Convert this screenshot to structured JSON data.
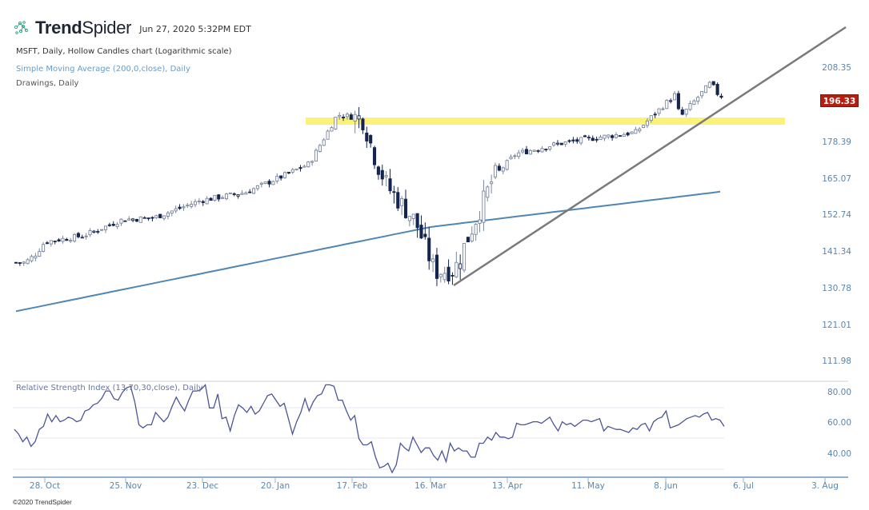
{
  "header": {
    "brand_bold": "Trend",
    "brand_light": "Spider",
    "timestamp": "Jun 27, 2020 5:32PM EDT",
    "logo_icon": "spider-web-dots-icon"
  },
  "legend": {
    "main": "MSFT, Daily, Hollow Candles chart (Logarithmic scale)",
    "sma": "Simple Moving Average (200,0,close), Daily",
    "drawings": "Drawings, Daily",
    "rsi": "Relative Strength Index (13,70,30,close), Daily"
  },
  "price_axis": {
    "labels": [
      "208.35",
      "178.39",
      "165.07",
      "152.74",
      "141.34",
      "130.78",
      "121.01",
      "111.98"
    ],
    "last_price": "196.33",
    "last_price_color": "#b32012"
  },
  "rsi_axis": {
    "labels": [
      "80.00",
      "60.00",
      "40.00"
    ]
  },
  "x_axis": {
    "labels": [
      "28. Oct",
      "25. Nov",
      "23. Dec",
      "20. Jan",
      "17. Feb",
      "16. Mar",
      "13. Apr",
      "11. May",
      "8. Jun",
      "6. Jul",
      "3. Aug"
    ]
  },
  "footer": {
    "copyright": "©2020 TrendSpider"
  },
  "colors": {
    "candle": "#14254f",
    "candle_hollow_fill": "#ffffff",
    "candle_hollow_grey": "#7a869e",
    "sma": "#4f86b4",
    "trendline": "#7a7a7a",
    "resistance_zone": "#fbf27a",
    "rsi_line": "#4c5596",
    "axis": "#8fb1cf"
  },
  "chart_data": [
    {
      "type": "candlestick",
      "title": "MSFT, Daily, Hollow Candles chart (Logarithmic scale)",
      "scale": "log",
      "ylim": [
        108,
        225
      ],
      "y_ticks": [
        208.35,
        178.39,
        165.07,
        152.74,
        141.34,
        130.78,
        121.01,
        111.98
      ],
      "x_ticks": [
        "28. Oct",
        "25. Nov",
        "23. Dec",
        "20. Jan",
        "17. Feb",
        "16. Mar",
        "13. Apr",
        "11. May",
        "8. Jun",
        "6. Jul",
        "3. Aug"
      ],
      "last_price": 196.33,
      "approx_close_path": [
        {
          "date": "2019-10-21",
          "close": 138.0
        },
        {
          "date": "2019-10-25",
          "close": 140.7
        },
        {
          "date": "2019-10-28",
          "close": 144.2
        },
        {
          "date": "2019-11-11",
          "close": 146.1
        },
        {
          "date": "2019-11-25",
          "close": 151.2
        },
        {
          "date": "2019-12-06",
          "close": 151.7
        },
        {
          "date": "2019-12-23",
          "close": 157.4
        },
        {
          "date": "2020-01-08",
          "close": 160.1
        },
        {
          "date": "2020-01-22",
          "close": 166.0
        },
        {
          "date": "2020-01-31",
          "close": 170.2
        },
        {
          "date": "2020-02-10",
          "close": 188.7
        },
        {
          "date": "2020-02-19",
          "close": 187.3
        },
        {
          "date": "2020-02-24",
          "close": 170.9
        },
        {
          "date": "2020-02-28",
          "close": 162.0
        },
        {
          "date": "2020-03-09",
          "close": 150.6
        },
        {
          "date": "2020-03-16",
          "close": 135.4
        },
        {
          "date": "2020-03-23",
          "close": 135.9
        },
        {
          "date": "2020-04-06",
          "close": 165.3
        },
        {
          "date": "2020-04-14",
          "close": 173.7
        },
        {
          "date": "2020-04-29",
          "close": 177.4
        },
        {
          "date": "2020-05-13",
          "close": 179.8
        },
        {
          "date": "2020-05-27",
          "close": 181.8
        },
        {
          "date": "2020-06-10",
          "close": 196.8
        },
        {
          "date": "2020-06-12",
          "close": 187.7
        },
        {
          "date": "2020-06-23",
          "close": 201.9
        },
        {
          "date": "2020-06-26",
          "close": 196.33
        }
      ],
      "overlays": [
        {
          "name": "Simple Moving Average (200,0,close), Daily",
          "type": "line",
          "start": 124.5,
          "mid_mar": 148.8,
          "end": 160.5
        },
        {
          "name": "Resistance zone",
          "type": "band",
          "from_date": "2020-01-28",
          "to_date": "2020-07-20",
          "low": 186.5,
          "high": 189.5
        },
        {
          "name": "Trendline",
          "type": "line",
          "from": {
            "date": "2020-03-23",
            "price": 132.5
          },
          "to": {
            "date": "2020-08-10",
            "price": 230
          }
        }
      ]
    },
    {
      "type": "line",
      "title": "Relative Strength Index (13,70,30,close), Daily",
      "ylim": [
        30,
        85
      ],
      "y_ticks": [
        80,
        60,
        40
      ],
      "gridlines": [
        70,
        50,
        30
      ],
      "series": [
        {
          "name": "RSI(13)",
          "values": [
            56,
            53,
            48,
            51,
            45,
            48,
            56,
            58,
            66,
            61,
            65,
            61,
            62,
            64,
            63,
            61,
            62,
            68,
            69,
            72,
            73,
            76,
            81,
            81,
            76,
            75,
            80,
            83,
            84,
            74,
            59,
            57,
            59,
            59,
            67,
            64,
            61,
            64,
            71,
            77,
            72,
            68,
            75,
            81,
            81,
            82,
            85,
            70,
            70,
            79,
            63,
            64,
            55,
            65,
            72,
            70,
            67,
            71,
            66,
            68,
            73,
            78,
            79,
            75,
            71,
            73,
            63,
            53,
            61,
            67,
            76,
            68,
            74,
            78,
            79,
            85,
            85,
            84,
            75,
            75,
            68,
            62,
            65,
            50,
            46,
            46,
            48,
            38,
            31,
            32,
            34,
            28,
            33,
            47,
            44,
            42,
            51,
            46,
            41,
            44,
            44,
            39,
            36,
            42,
            35,
            47,
            42,
            44,
            42,
            42,
            38,
            38,
            47,
            47,
            51,
            49,
            54,
            51,
            51,
            50,
            51,
            60,
            59,
            59,
            60,
            61,
            61,
            60,
            62,
            64,
            59,
            55,
            61,
            59,
            60,
            58,
            60,
            62,
            62,
            61,
            62,
            63,
            55,
            58,
            57,
            56,
            56,
            55,
            54,
            57,
            56,
            59,
            60,
            55,
            61,
            63,
            64,
            68,
            57,
            58,
            59,
            61,
            63,
            64,
            65,
            64,
            66,
            67,
            62,
            63,
            62,
            58
          ]
        }
      ]
    }
  ]
}
